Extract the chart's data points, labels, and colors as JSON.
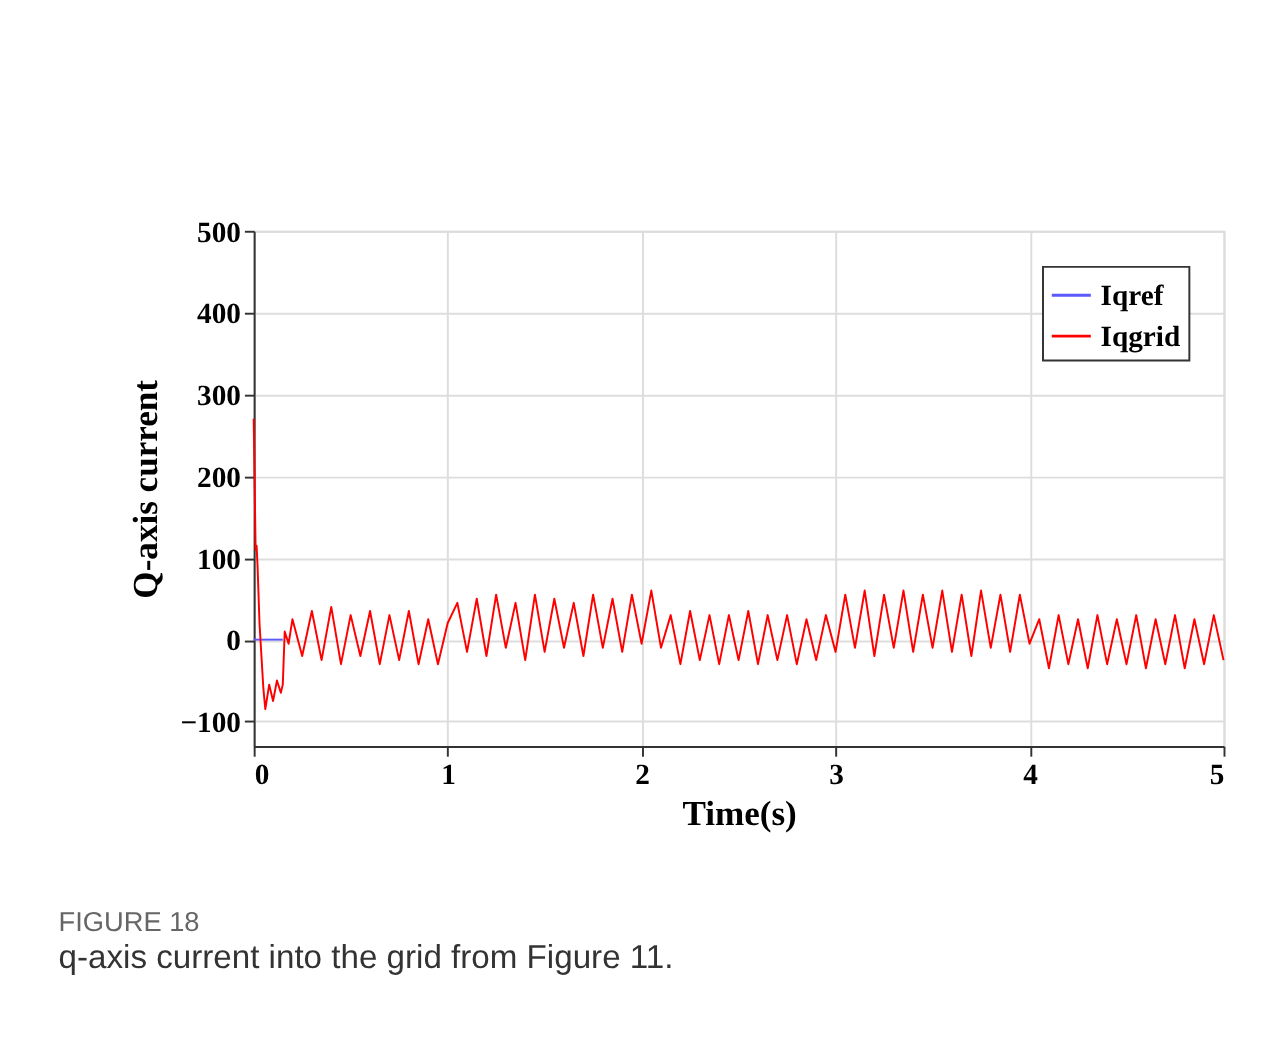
{
  "chart_data": {
    "type": "line",
    "xlabel": "Time(s)",
    "ylabel": "Q-axis current",
    "xlim": [
      0,
      5
    ],
    "xticks": [
      0,
      1,
      2,
      3,
      4,
      5
    ],
    "ylim": [
      -130,
      500
    ],
    "yticks": [
      -100,
      0,
      100,
      200,
      300,
      400,
      500
    ],
    "grid": true,
    "legend": "top right",
    "annotations": [
      "FIGURE 18",
      "q-axis current into the grid from Figure 11."
    ],
    "series": [
      {
        "name": "Iqref",
        "color": "#5a5aff",
        "x": [
          0,
          0.15
        ],
        "values": [
          0,
          0
        ]
      },
      {
        "name": "Iqgrid",
        "color": "#ff0000",
        "x": [
          0,
          0.005,
          0.01,
          0.015,
          0.02,
          0.03,
          0.04,
          0.05,
          0.06,
          0.08,
          0.1,
          0.12,
          0.14,
          0.15,
          0.16,
          0.18,
          0.2,
          0.25,
          0.3,
          0.35,
          0.4,
          0.45,
          0.5,
          0.55,
          0.6,
          0.65,
          0.7,
          0.75,
          0.8,
          0.85,
          0.9,
          0.95,
          1.0,
          1.05,
          1.1,
          1.15,
          1.2,
          1.25,
          1.3,
          1.35,
          1.4,
          1.45,
          1.5,
          1.55,
          1.6,
          1.65,
          1.7,
          1.75,
          1.8,
          1.85,
          1.9,
          1.95,
          2.0,
          2.05,
          2.1,
          2.15,
          2.2,
          2.25,
          2.3,
          2.35,
          2.4,
          2.45,
          2.5,
          2.55,
          2.6,
          2.65,
          2.7,
          2.75,
          2.8,
          2.85,
          2.9,
          2.95,
          3.0,
          3.05,
          3.1,
          3.15,
          3.2,
          3.25,
          3.3,
          3.35,
          3.4,
          3.45,
          3.5,
          3.55,
          3.6,
          3.65,
          3.7,
          3.75,
          3.8,
          3.85,
          3.9,
          3.95,
          4.0,
          4.05,
          4.1,
          4.15,
          4.2,
          4.25,
          4.3,
          4.35,
          4.4,
          4.45,
          4.5,
          4.55,
          4.6,
          4.65,
          4.7,
          4.75,
          4.8,
          4.85,
          4.9,
          4.95,
          5.0
        ],
        "values": [
          270,
          190,
          110,
          115,
          90,
          20,
          -20,
          -60,
          -85,
          -55,
          -75,
          -50,
          -65,
          -55,
          10,
          -5,
          25,
          -20,
          35,
          -25,
          40,
          -30,
          30,
          -20,
          35,
          -30,
          30,
          -25,
          35,
          -30,
          25,
          -30,
          20,
          45,
          -15,
          50,
          -20,
          55,
          -10,
          45,
          -25,
          55,
          -15,
          50,
          -10,
          45,
          -20,
          55,
          -10,
          50,
          -15,
          55,
          -5,
          60,
          -10,
          30,
          -30,
          35,
          -25,
          30,
          -30,
          30,
          -25,
          35,
          -30,
          30,
          -25,
          30,
          -30,
          25,
          -25,
          30,
          -15,
          55,
          -10,
          60,
          -20,
          55,
          -10,
          60,
          -15,
          55,
          -10,
          60,
          -15,
          55,
          -20,
          60,
          -10,
          55,
          -15,
          55,
          -5,
          25,
          -35,
          30,
          -30,
          25,
          -35,
          30,
          -30,
          25,
          -30,
          30,
          -35,
          25,
          -30,
          30,
          -35,
          25,
          -30,
          30,
          -25
        ]
      }
    ]
  }
}
